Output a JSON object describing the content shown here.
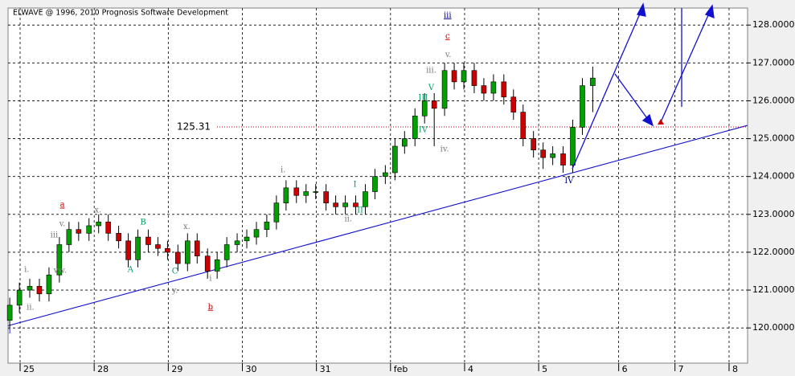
{
  "chart_data": {
    "type": "candlestick",
    "title": "ELWAVE @ 1996, 2010 Prognosis Software Development",
    "x": [
      -0.14,
      -0.01,
      0.13,
      0.26,
      0.39,
      0.53,
      0.66,
      0.79,
      0.93,
      1.06,
      1.19,
      1.33,
      1.46,
      1.59,
      1.73,
      1.86,
      1.99,
      2.13,
      2.26,
      2.39,
      2.53,
      2.66,
      2.79,
      2.93,
      3.06,
      3.19,
      3.33,
      3.46,
      3.59,
      3.73,
      3.86,
      3.99,
      4.13,
      4.26,
      4.39,
      4.53,
      4.66,
      4.79,
      4.93,
      5.06,
      5.19,
      5.33,
      5.46,
      5.59,
      5.73,
      5.86,
      5.99,
      6.13,
      6.26,
      6.39,
      6.53,
      6.66,
      6.79,
      6.93,
      7.06,
      7.19,
      7.33,
      7.46,
      7.59,
      7.73
    ],
    "open": [
      120.2,
      120.6,
      121.0,
      121.1,
      120.9,
      121.4,
      122.2,
      122.6,
      122.5,
      122.7,
      122.8,
      122.5,
      122.3,
      121.8,
      122.4,
      122.2,
      122.1,
      122.0,
      121.7,
      122.3,
      121.9,
      121.5,
      121.8,
      122.2,
      122.3,
      122.4,
      122.6,
      122.8,
      123.3,
      123.7,
      123.5,
      123.6,
      123.6,
      123.3,
      123.2,
      123.3,
      123.2,
      123.6,
      124.0,
      124.1,
      124.8,
      125.0,
      125.6,
      126.0,
      125.8,
      126.8,
      126.5,
      126.8,
      126.4,
      126.2,
      126.5,
      126.1,
      125.7,
      125.0,
      124.7,
      124.5,
      124.6,
      124.3,
      125.3,
      126.4
    ],
    "high": [
      120.8,
      121.2,
      121.3,
      121.3,
      121.6,
      122.4,
      122.8,
      122.8,
      122.9,
      123.0,
      123.0,
      122.7,
      122.5,
      122.6,
      122.6,
      122.4,
      122.3,
      122.2,
      122.5,
      122.5,
      122.1,
      122.0,
      122.4,
      122.5,
      122.6,
      122.8,
      123.0,
      123.5,
      123.9,
      123.9,
      123.8,
      123.8,
      123.8,
      123.5,
      123.5,
      123.5,
      123.8,
      124.2,
      124.3,
      125.0,
      125.2,
      125.8,
      126.2,
      126.2,
      127.0,
      127.0,
      127.0,
      127.0,
      126.6,
      126.7,
      126.7,
      126.3,
      125.9,
      125.2,
      124.9,
      124.8,
      124.8,
      125.5,
      126.6,
      126.9
    ],
    "low": [
      120.0,
      120.4,
      120.8,
      120.7,
      120.7,
      121.2,
      122.0,
      122.3,
      122.3,
      122.5,
      122.3,
      122.1,
      121.6,
      121.6,
      122.0,
      121.9,
      121.8,
      121.5,
      121.5,
      121.7,
      121.3,
      121.3,
      121.6,
      122.0,
      122.1,
      122.2,
      122.4,
      122.6,
      123.1,
      123.3,
      123.3,
      123.4,
      123.1,
      123.0,
      123.0,
      123.0,
      123.0,
      123.4,
      123.8,
      123.9,
      124.6,
      124.8,
      125.4,
      124.8,
      125.6,
      126.3,
      126.3,
      126.2,
      126.0,
      126.0,
      125.9,
      125.5,
      124.8,
      124.5,
      124.2,
      124.3,
      124.1,
      124.1,
      125.1,
      125.7
    ],
    "close": [
      120.6,
      121.0,
      121.1,
      120.9,
      121.4,
      122.2,
      122.6,
      122.5,
      122.7,
      122.8,
      122.5,
      122.3,
      121.8,
      122.4,
      122.2,
      122.1,
      122.0,
      121.7,
      122.3,
      121.9,
      121.5,
      121.8,
      122.2,
      122.3,
      122.4,
      122.6,
      122.8,
      123.3,
      123.7,
      123.5,
      123.6,
      123.6,
      123.3,
      123.2,
      123.3,
      123.2,
      123.6,
      124.0,
      124.1,
      124.8,
      125.0,
      125.6,
      126.0,
      125.8,
      126.8,
      126.5,
      126.8,
      126.4,
      126.2,
      126.5,
      126.1,
      125.7,
      125.0,
      124.7,
      124.5,
      124.6,
      124.3,
      125.3,
      126.4,
      126.6
    ],
    "up_color": "#00a000",
    "down_color": "#cc0000",
    "xlim": [
      -0.163,
      9.82
    ],
    "xticks": [
      {
        "value": 0,
        "label": "25"
      },
      {
        "value": 1,
        "label": "28"
      },
      {
        "value": 2,
        "label": "29"
      },
      {
        "value": 3,
        "label": "30"
      },
      {
        "value": 4,
        "label": "31"
      },
      {
        "value": 5,
        "label": "feb"
      },
      {
        "value": 6,
        "label": "4"
      },
      {
        "value": 7,
        "label": "5"
      },
      {
        "value": 8.08,
        "label": "6"
      },
      {
        "value": 8.84,
        "label": "7"
      },
      {
        "value": 9.57,
        "label": "8"
      }
    ],
    "ylim": [
      119.07,
      128.45
    ],
    "yticks": [
      {
        "value": 120,
        "label": "120.0000"
      },
      {
        "value": 121,
        "label": "121.0000"
      },
      {
        "value": 122,
        "label": "122.0000"
      },
      {
        "value": 123,
        "label": "123.0000"
      },
      {
        "value": 124,
        "label": "124.0000"
      },
      {
        "value": 125,
        "label": "125.0000"
      },
      {
        "value": 126,
        "label": "126.0000"
      },
      {
        "value": 127,
        "label": "127.0000"
      },
      {
        "value": 128,
        "label": "128.0000"
      }
    ],
    "grid": true,
    "trendline": {
      "x": [
        -0.16,
        9.82
      ],
      "y": [
        120.06,
        125.35
      ],
      "color": "#1010d0"
    },
    "level": {
      "value": 125.31,
      "color": "#cc0000"
    },
    "annotations": [
      {
        "text": "i",
        "x": -0.14,
        "y": 119.92,
        "color": "#1010d0"
      },
      {
        "text": "i.",
        "x": 0.09,
        "y": 121.53,
        "color": "#777"
      },
      {
        "text": "ii.",
        "x": 0.14,
        "y": 120.53,
        "color": "#777"
      },
      {
        "text": "iii",
        "x": 0.46,
        "y": 122.44,
        "color": "#777"
      },
      {
        "text": "v.",
        "x": 0.57,
        "y": 122.74,
        "color": "#777"
      },
      {
        "text": "a",
        "x": 0.57,
        "y": 123.25,
        "color": "#cc0000",
        "underline": true
      },
      {
        "text": "vw.",
        "x": 0.54,
        "y": 121.51,
        "color": "#777"
      },
      {
        "text": "x.",
        "x": 1.05,
        "y": 123.1,
        "color": "#777"
      },
      {
        "text": "B",
        "x": 1.66,
        "y": 122.78,
        "color": "#00a060"
      },
      {
        "text": "A",
        "x": 1.49,
        "y": 121.53,
        "color": "#00a060"
      },
      {
        "text": "x.",
        "x": 2.25,
        "y": 122.67,
        "color": "#777"
      },
      {
        "text": "C",
        "x": 2.09,
        "y": 121.49,
        "color": "#00a060"
      },
      {
        "text": "y.",
        "x": 2.09,
        "y": 120.98,
        "color": "#777"
      },
      {
        "text": "i",
        "x": 2.57,
        "y": 121.3,
        "color": "#777"
      },
      {
        "text": "b",
        "x": 2.57,
        "y": 120.55,
        "color": "#cc0000",
        "underline": true
      },
      {
        "text": "i.",
        "x": 3.55,
        "y": 124.16,
        "color": "#777"
      },
      {
        "text": "I",
        "x": 4.52,
        "y": 123.78,
        "color": "#00a060"
      },
      {
        "text": "ii.",
        "x": 4.43,
        "y": 122.87,
        "color": "#777"
      },
      {
        "text": "II",
        "x": 4.59,
        "y": 123.1,
        "color": "#00a060"
      },
      {
        "text": "III",
        "x": 5.44,
        "y": 126.07,
        "color": "#00a060"
      },
      {
        "text": "V",
        "x": 5.55,
        "y": 126.34,
        "color": "#00a060"
      },
      {
        "text": "IV",
        "x": 5.44,
        "y": 125.22,
        "color": "#00a060"
      },
      {
        "text": "iii.",
        "x": 5.55,
        "y": 126.79,
        "color": "#777"
      },
      {
        "text": "v.",
        "x": 5.78,
        "y": 127.21,
        "color": "#777"
      },
      {
        "text": "iii",
        "x": 5.77,
        "y": 128.25,
        "color": "#000080",
        "underline": true
      },
      {
        "text": "c",
        "x": 5.77,
        "y": 127.7,
        "color": "#cc0000",
        "underline": true
      },
      {
        "text": "iv.",
        "x": 5.73,
        "y": 124.71,
        "color": "#777"
      },
      {
        "text": "IV",
        "x": 7.41,
        "y": 123.88,
        "color": "#000080"
      }
    ]
  }
}
